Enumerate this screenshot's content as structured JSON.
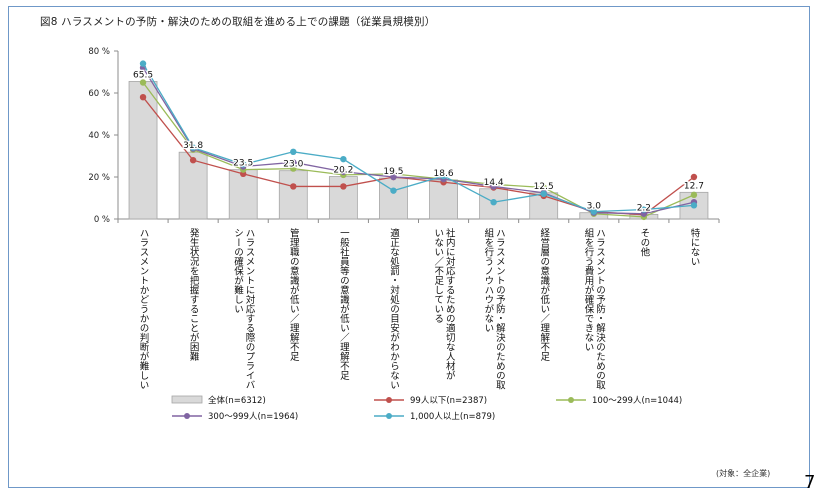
{
  "title": "図8 ハラスメントの予防・解決のための取組を進める上での課題（従業員規模別）",
  "note": "(対象：全企業)",
  "page_number": "7",
  "colors": {
    "frame": "#6f98c8",
    "bar_fill": "#d9d9d9",
    "bar_stroke": "#a6a6a6",
    "grid": "#bfbfbf"
  },
  "chart_data": {
    "type": "bar",
    "title": "図8 ハラスメントの予防・解決のための取組を進める上での課題（従業員規模別）",
    "ylim": [
      0,
      80
    ],
    "yticks": [
      "0 %",
      "20 %",
      "40 %",
      "60 %",
      "80 %"
    ],
    "ytick_values": [
      0,
      20,
      40,
      60,
      80
    ],
    "grid": false,
    "legend_position": "bottom",
    "categories": [
      "ハラスメントかどうかの判断が難しい",
      "発生状況を把握することが困難",
      "ハラスメントに対応する際のプライバシーの確保が難しい",
      "管理職の意識が低い／理解不足",
      "一般社員等の意識が低い／理解不足",
      "適正な処罰・対処の目安がわからない",
      "社内に対応するための適切な人材がいない／不足している",
      "ハラスメントの予防・解決のための取組を行うノウハウがない",
      "経営層の意識が低い／理解不足",
      "ハラスメントの予防・解決のための取組を行う費用が確保できない",
      "その他",
      "特にない"
    ],
    "label_lines": [
      [
        "ハラスメントかどうかの判断が難しい"
      ],
      [
        "発生状況を把握することが困難"
      ],
      [
        "ハラスメントに対応する際のプライバ",
        "シーの確保が難しい"
      ],
      [
        "管理職の意識が低い／理解不足"
      ],
      [
        "一般社員等の意識が低い／理解不足"
      ],
      [
        "適正な処罰・対処の目安がわからない"
      ],
      [
        "社内に対応するための適切な人材が",
        "いない／不足している"
      ],
      [
        "ハラスメントの予防・解決のための取",
        "組を行うノウハウがない"
      ],
      [
        "経営層の意識が低い／理解不足"
      ],
      [
        "ハラスメントの予防・解決のための取",
        "組を行う費用が確保できない"
      ],
      [
        "その他"
      ],
      [
        "特にない"
      ]
    ],
    "series": [
      {
        "name": "全体(n=6312)",
        "kind": "bar",
        "color": "#d9d9d9",
        "values": [
          65.5,
          31.8,
          23.5,
          23.0,
          20.2,
          19.5,
          18.6,
          14.4,
          12.5,
          3.0,
          2.2,
          12.7
        ]
      },
      {
        "name": "99人以下(n=2387)",
        "kind": "line",
        "color": "#c0504d",
        "values": [
          58.0,
          28.0,
          21.5,
          15.5,
          15.5,
          20.0,
          17.5,
          15.0,
          11.0,
          3.5,
          2.0,
          20.0
        ]
      },
      {
        "name": "100～299人(n=1044)",
        "kind": "line",
        "color": "#9bbb59",
        "values": [
          65.0,
          33.0,
          23.5,
          24.0,
          21.0,
          21.5,
          19.0,
          16.5,
          15.0,
          2.5,
          1.0,
          11.5
        ]
      },
      {
        "name": "300～999人(n=1964)",
        "kind": "line",
        "color": "#8064a2",
        "values": [
          72.0,
          33.5,
          25.0,
          27.0,
          22.5,
          20.0,
          19.0,
          15.5,
          12.5,
          3.0,
          2.5,
          8.0
        ]
      },
      {
        "name": "1,000人以上(n=879)",
        "kind": "line",
        "color": "#4bacc6",
        "values": [
          74.0,
          34.0,
          26.0,
          32.0,
          28.5,
          13.5,
          20.5,
          8.0,
          12.0,
          3.5,
          4.5,
          6.5
        ]
      }
    ],
    "data_labels": [
      "65.5",
      "31.8",
      "23.5",
      "23.0",
      "20.2",
      "19.5",
      "18.6",
      "14.4",
      "12.5",
      "3.0",
      "2.2",
      "12.7"
    ]
  }
}
